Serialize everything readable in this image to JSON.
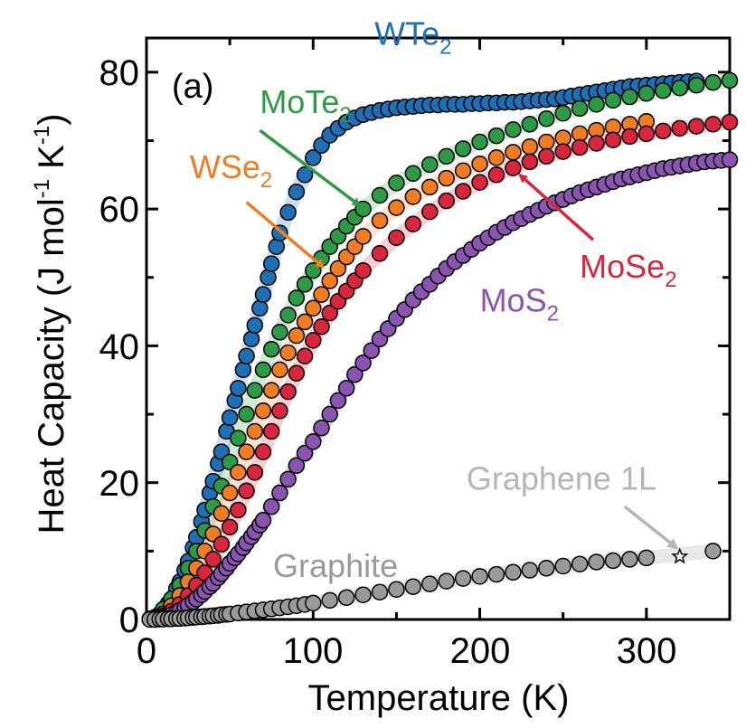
{
  "chart_data": {
    "type": "scatter",
    "panel_label": "(a)",
    "xlabel": "Temperature (K)",
    "ylabel": "Heat Capacity (J mol-1 K-1)",
    "ylabel_parts": {
      "main": "Heat Capacity (J mol",
      "sup1": "-1",
      "mid": " K",
      "sup2": "-1",
      "end": ")"
    },
    "xlim": [
      0,
      350
    ],
    "ylim": [
      0,
      85
    ],
    "xticks": [
      0,
      100,
      200,
      300
    ],
    "yticks": [
      0,
      20,
      40,
      60,
      80
    ],
    "grid": false,
    "series": [
      {
        "name": "WTe2",
        "label_main": "WTe",
        "label_sub": "2",
        "color": "#1f6fb4",
        "x": [
          2,
          5,
          8,
          10,
          13,
          15,
          18,
          20,
          23,
          25,
          28,
          30,
          33,
          35,
          38,
          40,
          43,
          45,
          48,
          50,
          53,
          55,
          58,
          60,
          63,
          65,
          68,
          70,
          73,
          75,
          78,
          80,
          85,
          90,
          95,
          100,
          105,
          110,
          115,
          120,
          125,
          130,
          135,
          140,
          145,
          150,
          155,
          160,
          165,
          170,
          175,
          180,
          185,
          190,
          195,
          200,
          205,
          210,
          215,
          220,
          225,
          230,
          235,
          240,
          245,
          250,
          255,
          260,
          265,
          270,
          275,
          280,
          285,
          290,
          295,
          300,
          305,
          310,
          315,
          320,
          325,
          330
        ],
        "y": [
          0.1,
          0.3,
          0.8,
          1.3,
          2.3,
          3.0,
          4.5,
          5.5,
          7.2,
          8.5,
          10.5,
          12.0,
          14.3,
          16.0,
          18.5,
          20.2,
          22.8,
          24.5,
          27.5,
          29.5,
          32.0,
          33.8,
          36.5,
          38.5,
          41.0,
          43.0,
          45.5,
          47.5,
          50.0,
          52.0,
          54.5,
          56.5,
          59.5,
          62.5,
          65.0,
          67.5,
          69.3,
          70.8,
          71.8,
          72.7,
          73.3,
          73.8,
          74.1,
          74.4,
          74.6,
          74.8,
          74.9,
          75.0,
          75.1,
          75.2,
          75.2,
          75.3,
          75.3,
          75.3,
          75.4,
          75.4,
          75.5,
          75.5,
          75.6,
          75.6,
          75.7,
          75.8,
          75.9,
          76.0,
          76.1,
          76.3,
          76.5,
          76.7,
          76.9,
          77.1,
          77.3,
          77.5,
          77.7,
          77.9,
          78.0,
          78.1,
          78.2,
          78.3,
          78.4,
          78.5,
          78.6,
          78.7
        ]
      },
      {
        "name": "MoTe2",
        "label_main": "MoTe",
        "label_sub": "2",
        "color": "#2e9a47",
        "x": [
          5,
          10,
          15,
          20,
          25,
          30,
          35,
          40,
          45,
          50,
          55,
          60,
          65,
          70,
          75,
          80,
          85,
          90,
          95,
          100,
          105,
          110,
          115,
          120,
          125,
          130,
          140,
          150,
          160,
          170,
          180,
          190,
          200,
          210,
          220,
          230,
          240,
          250,
          260,
          270,
          280,
          290,
          300,
          310,
          320,
          330,
          340,
          350
        ],
        "y": [
          0.3,
          1.5,
          3.0,
          5.0,
          7.5,
          10.0,
          13.0,
          16.5,
          19.5,
          23.0,
          26.5,
          30.0,
          33.5,
          36.5,
          39.5,
          42.0,
          44.5,
          47.0,
          49.0,
          51.0,
          52.8,
          54.5,
          56.0,
          57.5,
          58.8,
          60.0,
          62.0,
          63.8,
          65.2,
          66.5,
          67.7,
          68.8,
          69.8,
          70.7,
          71.6,
          72.4,
          73.2,
          74.0,
          74.7,
          75.3,
          75.9,
          76.4,
          76.9,
          77.3,
          77.7,
          78.1,
          78.5,
          78.8
        ]
      },
      {
        "name": "WSe2",
        "label_main": "WSe",
        "label_sub": "2",
        "color": "#f07d24",
        "x": [
          5,
          10,
          15,
          20,
          25,
          30,
          35,
          40,
          45,
          50,
          55,
          60,
          65,
          70,
          75,
          80,
          85,
          90,
          95,
          100,
          105,
          110,
          115,
          120,
          125,
          130,
          140,
          150,
          160,
          170,
          180,
          190,
          200,
          210,
          220,
          230,
          240,
          250,
          260,
          270,
          280,
          290,
          300
        ],
        "y": [
          0.2,
          0.8,
          2.0,
          3.5,
          5.5,
          7.5,
          10.0,
          12.5,
          15.5,
          18.5,
          21.5,
          24.5,
          27.5,
          30.5,
          33.5,
          36.5,
          39.0,
          41.5,
          43.5,
          45.5,
          47.5,
          49.5,
          51.3,
          53.0,
          54.5,
          56.0,
          58.3,
          60.2,
          61.8,
          63.2,
          64.5,
          65.6,
          66.6,
          67.5,
          68.3,
          69.1,
          69.8,
          70.4,
          71.0,
          71.5,
          72.0,
          72.4,
          72.8
        ]
      },
      {
        "name": "MoSe2",
        "label_main": "MoSe",
        "label_sub": "2",
        "color": "#d7263d",
        "x": [
          5,
          10,
          15,
          20,
          25,
          30,
          35,
          40,
          45,
          50,
          55,
          60,
          65,
          70,
          75,
          80,
          85,
          90,
          95,
          100,
          105,
          110,
          115,
          120,
          125,
          130,
          140,
          150,
          160,
          170,
          180,
          190,
          200,
          210,
          220,
          230,
          240,
          250,
          260,
          270,
          280,
          290,
          300,
          310,
          320,
          330,
          340,
          350
        ],
        "y": [
          0.1,
          0.5,
          1.2,
          2.2,
          3.5,
          5.0,
          6.8,
          8.8,
          11.0,
          13.5,
          16.0,
          18.8,
          21.5,
          24.5,
          27.5,
          30.5,
          33.3,
          36.0,
          38.5,
          40.8,
          42.8,
          44.8,
          46.5,
          48.0,
          49.5,
          51.0,
          53.5,
          55.8,
          57.8,
          59.6,
          61.2,
          62.6,
          63.9,
          65.0,
          66.0,
          66.9,
          67.7,
          68.4,
          69.0,
          69.6,
          70.1,
          70.6,
          71.0,
          71.4,
          71.8,
          72.1,
          72.4,
          72.7
        ]
      },
      {
        "name": "MoS2",
        "label_main": "MoS",
        "label_sub": "2",
        "color": "#8a55b0",
        "x": [
          2,
          5,
          8,
          10,
          13,
          15,
          18,
          20,
          23,
          25,
          28,
          30,
          33,
          35,
          38,
          40,
          43,
          45,
          48,
          50,
          53,
          55,
          58,
          60,
          63,
          65,
          68,
          70,
          75,
          80,
          85,
          90,
          95,
          100,
          105,
          110,
          115,
          120,
          125,
          130,
          135,
          140,
          145,
          150,
          155,
          160,
          165,
          170,
          175,
          180,
          185,
          190,
          195,
          200,
          205,
          210,
          215,
          220,
          225,
          230,
          235,
          240,
          245,
          250,
          255,
          260,
          265,
          270,
          275,
          280,
          285,
          290,
          295,
          300,
          305,
          310,
          315,
          320,
          325,
          330,
          335,
          340,
          345,
          350
        ],
        "y": [
          0.05,
          0.1,
          0.2,
          0.3,
          0.5,
          0.7,
          1.0,
          1.3,
          1.7,
          2.1,
          2.6,
          3.0,
          3.6,
          4.1,
          4.8,
          5.3,
          6.1,
          6.7,
          7.5,
          8.2,
          9.0,
          9.6,
          10.5,
          11.2,
          12.1,
          12.8,
          13.8,
          14.5,
          16.5,
          18.5,
          20.5,
          22.5,
          24.3,
          26.0,
          28.0,
          30.0,
          32.0,
          33.8,
          35.8,
          37.5,
          39.3,
          41.0,
          42.5,
          44.0,
          45.3,
          46.7,
          47.9,
          49.0,
          50.2,
          51.3,
          52.3,
          53.2,
          54.1,
          55.0,
          55.8,
          56.6,
          57.3,
          58.0,
          58.6,
          59.2,
          59.8,
          60.4,
          60.9,
          61.4,
          61.9,
          62.4,
          62.8,
          63.2,
          63.6,
          64.0,
          64.4,
          64.7,
          65.0,
          65.3,
          65.6,
          65.9,
          66.1,
          66.3,
          66.5,
          66.7,
          66.9,
          67.0,
          67.1,
          67.2
        ]
      },
      {
        "name": "Graphite",
        "label_main": "Graphite",
        "label_sub": "",
        "color": "#9a9a9a",
        "x": [
          2,
          5,
          8,
          10,
          13,
          15,
          18,
          20,
          23,
          25,
          28,
          30,
          33,
          35,
          38,
          40,
          43,
          45,
          48,
          50,
          55,
          60,
          65,
          70,
          75,
          80,
          85,
          90,
          95,
          100,
          110,
          120,
          130,
          140,
          150,
          160,
          170,
          180,
          190,
          200,
          210,
          220,
          230,
          240,
          250,
          260,
          270,
          280,
          290,
          300,
          340
        ],
        "y": [
          0.0,
          0.0,
          0.05,
          0.05,
          0.1,
          0.1,
          0.15,
          0.15,
          0.2,
          0.25,
          0.3,
          0.35,
          0.4,
          0.45,
          0.5,
          0.55,
          0.6,
          0.7,
          0.75,
          0.8,
          0.95,
          1.1,
          1.25,
          1.4,
          1.55,
          1.7,
          1.85,
          2.0,
          2.2,
          2.4,
          2.8,
          3.2,
          3.6,
          4.0,
          4.4,
          4.8,
          5.2,
          5.6,
          6.0,
          6.3,
          6.6,
          6.9,
          7.2,
          7.5,
          7.8,
          8.1,
          8.4,
          8.6,
          8.8,
          9.0,
          10.0
        ]
      }
    ],
    "graphene": {
      "name": "Graphene 1L",
      "x": 320,
      "y": 9.2,
      "marker": "star"
    },
    "annotations": [
      {
        "target": "WTe2",
        "at": [
          160,
          84
        ],
        "ha": "middle"
      },
      {
        "target": "MoTe2",
        "at": [
          68,
          74
        ],
        "ha": "start",
        "arrow": [
          68,
          71.5,
          128,
          60.5
        ]
      },
      {
        "target": "WSe2",
        "at": [
          26,
          64.5
        ],
        "ha": "start",
        "arrow": [
          60,
          61,
          106,
          51.5
        ]
      },
      {
        "target": "MoSe2",
        "at": [
          260,
          50
        ],
        "ha": "start",
        "arrow": [
          268,
          55.5,
          224,
          65
        ]
      },
      {
        "target": "MoS2",
        "at": [
          200,
          45
        ],
        "ha": "start"
      },
      {
        "target": "Graphite",
        "at": [
          76,
          6.2
        ],
        "ha": "start"
      },
      {
        "target": "Graphene 1L",
        "at": [
          192,
          19
        ],
        "ha": "start",
        "arrow": [
          287,
          16.5,
          318,
          10.5
        ]
      }
    ]
  }
}
